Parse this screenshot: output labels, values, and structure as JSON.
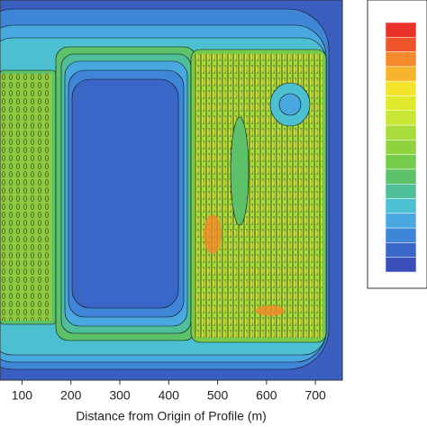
{
  "chart_data": {
    "type": "contour",
    "xlabel": "Distance from Origin of Profile (m)",
    "xlim": [
      55,
      755
    ],
    "xticks": [
      100,
      200,
      300,
      400,
      500,
      600,
      700
    ],
    "colorbar_colors": [
      "#e8322a",
      "#f0552a",
      "#f58a2a",
      "#f7b52d",
      "#f4e52c",
      "#e0ea2c",
      "#c8e633",
      "#a8dc3a",
      "#8fd43f",
      "#74cc4a",
      "#5cc168",
      "#4fbf9a",
      "#4cc0d0",
      "#4aa8e0",
      "#3f86d8",
      "#3a66c8",
      "#3a50b8"
    ]
  }
}
